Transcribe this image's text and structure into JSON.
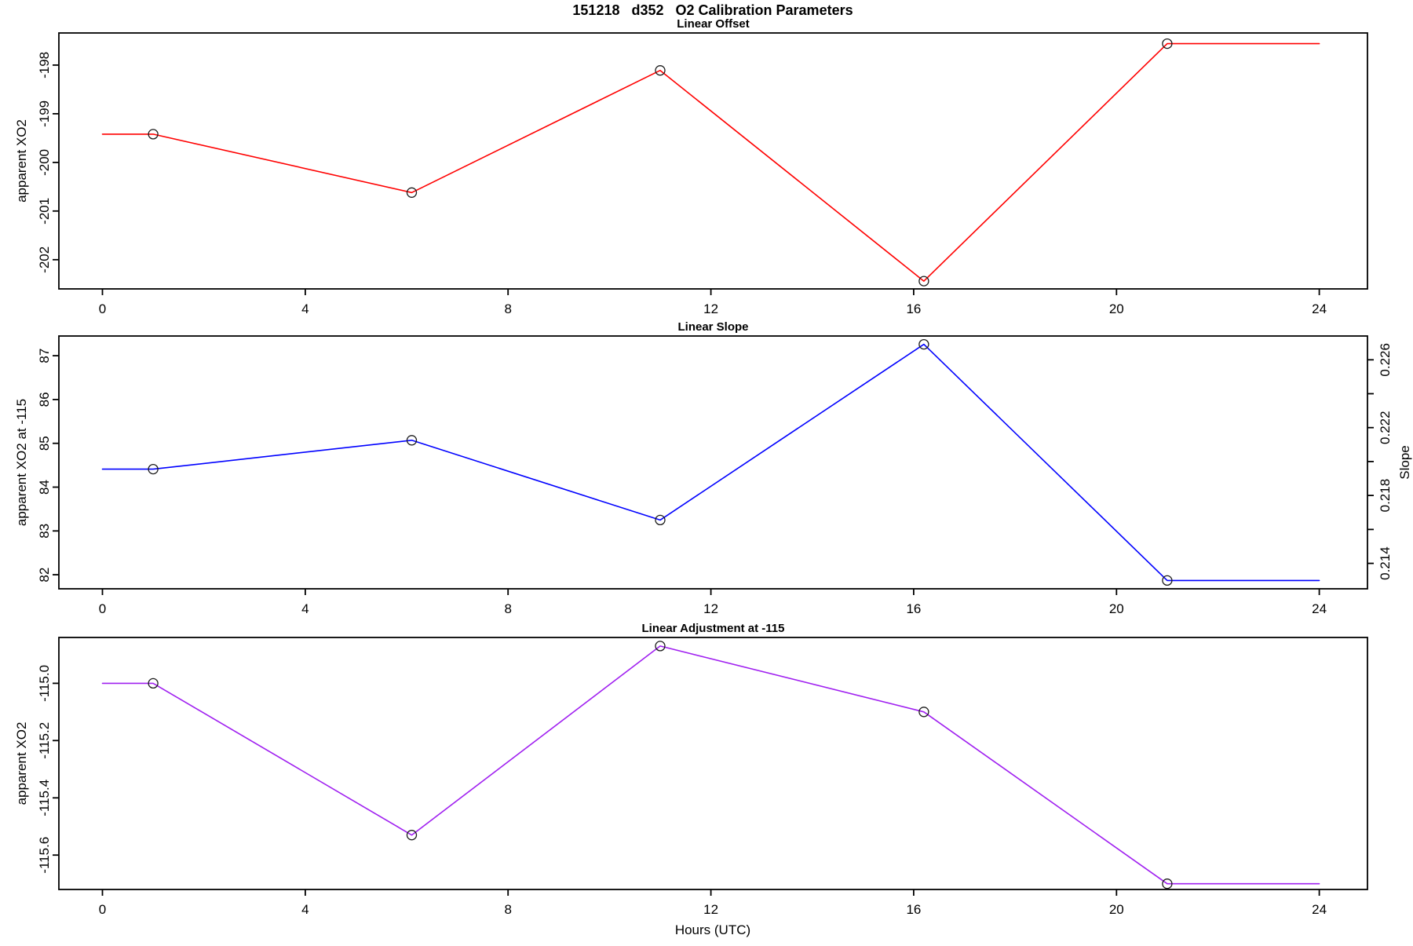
{
  "figure": {
    "title": "151218   d352   O2 Calibration Parameters",
    "xlabel": "Hours (UTC)"
  },
  "chart_data": [
    {
      "type": "line",
      "title": "Linear Offset",
      "ylabel": "apparent XO2",
      "color": "#FF0000",
      "x": [
        0,
        1,
        6.1,
        11,
        16.2,
        21,
        24
      ],
      "y": [
        -199.42,
        -199.42,
        -200.62,
        -198.11,
        -202.44,
        -197.56,
        -197.56
      ],
      "markers": {
        "x": [
          1,
          6.1,
          11,
          16.2,
          21
        ],
        "y": [
          -199.42,
          -200.62,
          -198.11,
          -202.44,
          -197.56
        ]
      },
      "xlim": [
        -0.86,
        24.95
      ],
      "ylim": [
        -202.6,
        -197.34
      ],
      "xticks": {
        "values": [
          0,
          4,
          8,
          12,
          16,
          20,
          24
        ],
        "labels": [
          "0",
          "4",
          "8",
          "12",
          "16",
          "20",
          "24"
        ]
      },
      "yticks": {
        "values": [
          -202,
          -201,
          -200,
          -199,
          -198
        ],
        "labels": [
          "-202",
          "-201",
          "-200",
          "-199",
          "-198"
        ]
      }
    },
    {
      "type": "line",
      "title": "Linear Slope",
      "ylabel": "apparent XO2 at -115",
      "color": "#0000FF",
      "x": [
        0,
        1,
        6.1,
        11,
        16.2,
        21,
        24
      ],
      "y": [
        84.41,
        84.41,
        85.07,
        83.25,
        87.26,
        81.87,
        81.87
      ],
      "markers": {
        "x": [
          1,
          6.1,
          11,
          16.2,
          21
        ],
        "y": [
          84.41,
          85.07,
          83.25,
          87.26,
          81.87
        ]
      },
      "xlim": [
        -0.86,
        24.95
      ],
      "ylim": [
        81.68,
        87.45
      ],
      "xticks": {
        "values": [
          0,
          4,
          8,
          12,
          16,
          20,
          24
        ],
        "labels": [
          "0",
          "4",
          "8",
          "12",
          "16",
          "20",
          "24"
        ]
      },
      "yticks": {
        "values": [
          82,
          83,
          84,
          85,
          86,
          87
        ],
        "labels": [
          "82",
          "83",
          "84",
          "85",
          "86",
          "87"
        ]
      },
      "right_axis": {
        "label": "Slope",
        "ylim": [
          0.2125,
          0.2274
        ],
        "ticks": [
          0.214,
          0.216,
          0.218,
          0.22,
          0.222,
          0.224,
          0.226
        ],
        "tick_labels": [
          "0.214",
          "",
          "0.218",
          "",
          "0.222",
          "",
          "0.226"
        ]
      }
    },
    {
      "type": "line",
      "title": "Linear Adjustment at -115",
      "ylabel": "apparent XO2",
      "color": "#A020F0",
      "x": [
        0,
        1,
        6.1,
        11,
        16.2,
        21,
        24
      ],
      "y": [
        -115.0,
        -115.0,
        -115.53,
        -114.87,
        -115.1,
        -115.7,
        -115.7
      ],
      "markers": {
        "x": [
          1,
          6.1,
          11,
          16.2,
          21
        ],
        "y": [
          -115.0,
          -115.53,
          -114.87,
          -115.1,
          -115.7
        ]
      },
      "xlim": [
        -0.86,
        24.95
      ],
      "ylim": [
        -115.72,
        -114.84
      ],
      "xticks": {
        "values": [
          0,
          4,
          8,
          12,
          16,
          20,
          24
        ],
        "labels": [
          "0",
          "4",
          "8",
          "12",
          "16",
          "20",
          "24"
        ]
      },
      "yticks": {
        "values": [
          -115.6,
          -115.4,
          -115.2,
          -115.0
        ],
        "labels": [
          "-115.6",
          "-115.4",
          "-115.2",
          "-115.0"
        ]
      }
    }
  ]
}
